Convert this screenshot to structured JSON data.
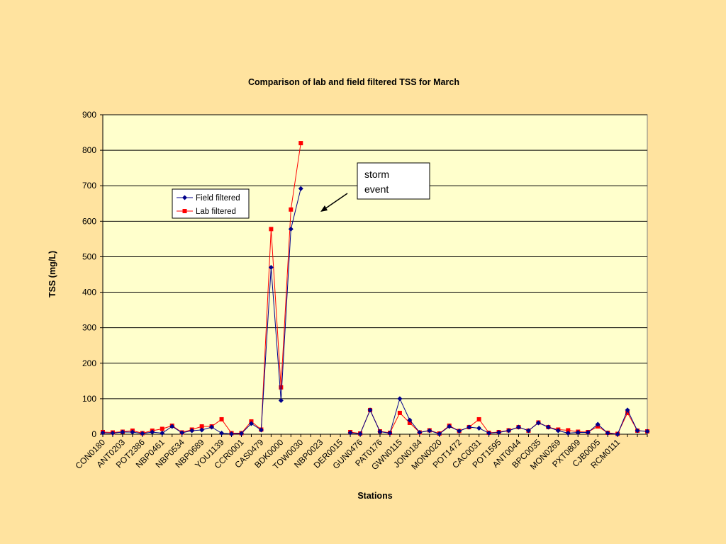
{
  "chart_data": {
    "type": "line",
    "title": "Comparison of lab and field filtered TSS for March",
    "xlabel": "Stations",
    "ylabel": "TSS (mg/L)",
    "ylim": [
      0,
      900
    ],
    "yticks": [
      0,
      100,
      200,
      300,
      400,
      500,
      600,
      700,
      800,
      900
    ],
    "grid": "horizontal",
    "legend_position": "upper-left",
    "x_tick_labels": [
      "CON0180",
      "ANT0203",
      "POT2386",
      "NBP0461",
      "NBP0534",
      "NBP0689",
      "YOU1139",
      "CCR0001",
      "CAS0479",
      "BDK0000",
      "TOW0030",
      "NBP0023",
      "DER0015",
      "GUN0476",
      "PAT0176",
      "GWN0115",
      "JON0184",
      "MON0020",
      "POT1472",
      "CAC0031",
      "POT1595",
      "ANT0044",
      "BPC0035",
      "MON0269",
      "PXT0809",
      "CJB0005",
      "RCM0111"
    ],
    "point_count": 56,
    "series": [
      {
        "name": "Field filtered",
        "color": "#00008B",
        "marker": "diamond",
        "values": [
          4,
          3,
          6,
          6,
          2,
          6,
          3,
          22,
          4,
          10,
          12,
          20,
          3,
          1,
          2,
          30,
          12,
          470,
          95,
          578,
          692,
          null,
          null,
          null,
          null,
          4,
          1,
          68,
          7,
          3,
          100,
          40,
          5,
          10,
          1,
          22,
          9,
          20,
          17,
          3,
          5,
          10,
          20,
          10,
          32,
          20,
          10,
          3,
          5,
          5,
          28,
          3,
          0,
          68,
          10,
          8
        ]
      },
      {
        "name": "Lab filtered",
        "color": "#FF0000",
        "marker": "square",
        "values": [
          6,
          5,
          7,
          10,
          3,
          10,
          15,
          24,
          5,
          13,
          22,
          22,
          42,
          3,
          3,
          36,
          13,
          578,
          132,
          633,
          820,
          null,
          null,
          null,
          null,
          6,
          2,
          68,
          8,
          4,
          60,
          32,
          5,
          11,
          2,
          24,
          9,
          20,
          42,
          4,
          6,
          11,
          20,
          10,
          33,
          20,
          13,
          11,
          7,
          6,
          22,
          4,
          1,
          60,
          10,
          8
        ]
      }
    ],
    "annotation": {
      "text_lines": [
        "storm",
        "event"
      ]
    }
  }
}
